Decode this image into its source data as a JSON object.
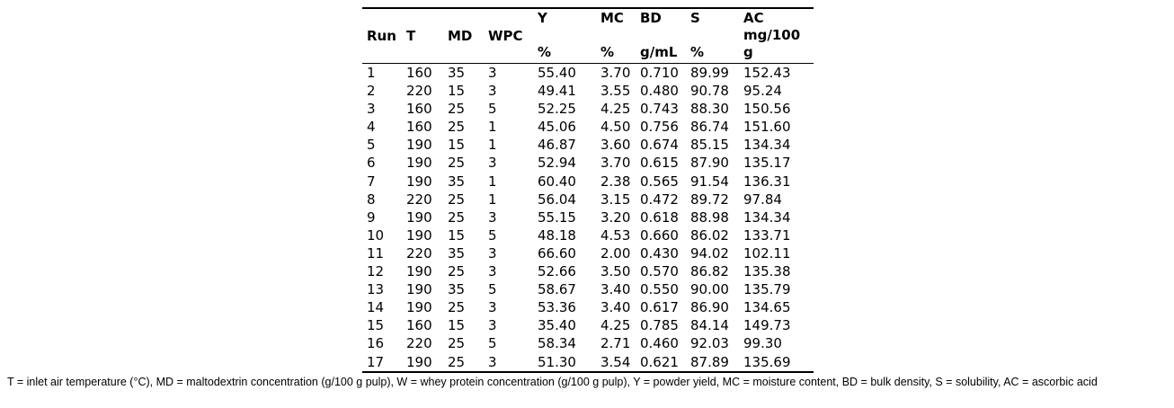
{
  "colors": {
    "background": "#ffffff",
    "text": "#000000",
    "rule": "#000000"
  },
  "table": {
    "columns": [
      {
        "key": "run",
        "lines": [
          "Run"
        ]
      },
      {
        "key": "t",
        "lines": [
          "T"
        ]
      },
      {
        "key": "md",
        "lines": [
          "MD"
        ]
      },
      {
        "key": "wpc",
        "lines": [
          "WPC"
        ]
      },
      {
        "key": "y",
        "lines": [
          "Y",
          "%"
        ]
      },
      {
        "key": "mc",
        "lines": [
          "MC",
          "%"
        ]
      },
      {
        "key": "bd",
        "lines": [
          "BD",
          "g/mL"
        ]
      },
      {
        "key": "s",
        "lines": [
          "S",
          "%"
        ]
      },
      {
        "key": "ac",
        "lines": [
          "AC",
          "mg/100",
          "g"
        ]
      }
    ],
    "rows": [
      [
        "1",
        "160",
        "35",
        "3",
        "55.40",
        "3.70",
        "0.710",
        "89.99",
        "152.43"
      ],
      [
        "2",
        "220",
        "15",
        "3",
        "49.41",
        "3.55",
        "0.480",
        "90.78",
        "95.24"
      ],
      [
        "3",
        "160",
        "25",
        "5",
        "52.25",
        "4.25",
        "0.743",
        "88.30",
        "150.56"
      ],
      [
        "4",
        "160",
        "25",
        "1",
        "45.06",
        "4.50",
        "0.756",
        "86.74",
        "151.60"
      ],
      [
        "5",
        "190",
        "15",
        "1",
        "46.87",
        "3.60",
        "0.674",
        "85.15",
        "134.34"
      ],
      [
        "6",
        "190",
        "25",
        "3",
        "52.94",
        "3.70",
        "0.615",
        "87.90",
        "135.17"
      ],
      [
        "7",
        "190",
        "35",
        "1",
        "60.40",
        "2.38",
        "0.565",
        "91.54",
        "136.31"
      ],
      [
        "8",
        "220",
        "25",
        "1",
        "56.04",
        "3.15",
        "0.472",
        "89.72",
        "97.84"
      ],
      [
        "9",
        "190",
        "25",
        "3",
        "55.15",
        "3.20",
        "0.618",
        "88.98",
        "134.34"
      ],
      [
        "10",
        "190",
        "15",
        "5",
        "48.18",
        "4.53",
        "0.660",
        "86.02",
        "133.71"
      ],
      [
        "11",
        "220",
        "35",
        "3",
        "66.60",
        "2.00",
        "0.430",
        "94.02",
        "102.11"
      ],
      [
        "12",
        "190",
        "25",
        "3",
        "52.66",
        "3.50",
        "0.570",
        "86.82",
        "135.38"
      ],
      [
        "13",
        "190",
        "35",
        "5",
        "58.67",
        "3.40",
        "0.550",
        "90.00",
        "135.79"
      ],
      [
        "14",
        "190",
        "25",
        "3",
        "53.36",
        "3.40",
        "0.617",
        "86.90",
        "134.65"
      ],
      [
        "15",
        "160",
        "15",
        "3",
        "35.40",
        "4.25",
        "0.785",
        "84.14",
        "149.73"
      ],
      [
        "16",
        "220",
        "25",
        "5",
        "58.34",
        "2.71",
        "0.460",
        "92.03",
        "99.30"
      ],
      [
        "17",
        "190",
        "25",
        "3",
        "51.30",
        "3.54",
        "0.621",
        "87.89",
        "135.69"
      ]
    ]
  },
  "footnote": "T = inlet air temperature (°C), MD = maltodextrin concentration (g/100 g pulp), W = whey protein concentration (g/100 g pulp), Y = powder yield, MC = moisture content, BD = bulk density, S = solubility, AC = ascorbic acid"
}
